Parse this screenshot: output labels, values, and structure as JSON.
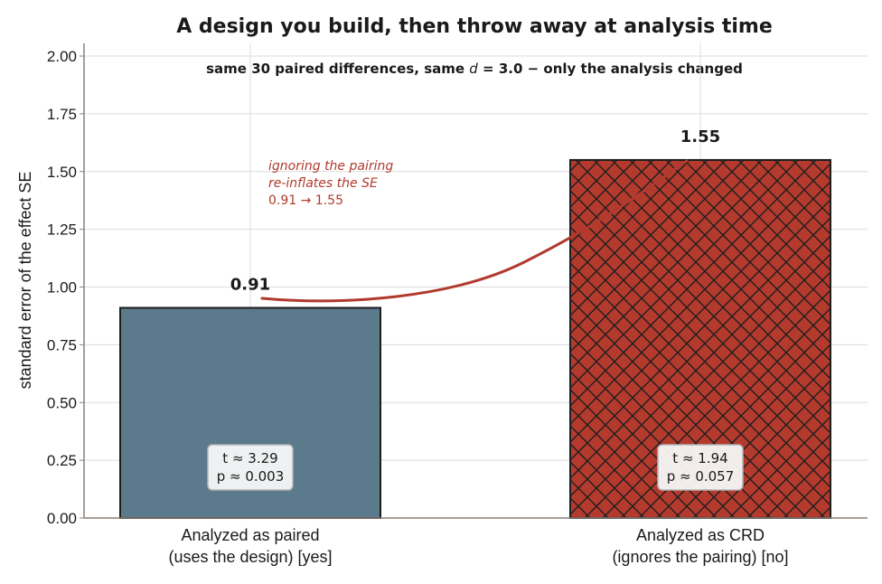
{
  "chart_data": {
    "type": "bar",
    "title": "A design you build, then throw away at analysis time",
    "subtitle_parts": [
      "same 30 paired differences, same ",
      "d",
      " = 3.0 − only the analysis changed"
    ],
    "ylabel": "standard error of the effect  SE",
    "ylim": [
      0,
      2.05
    ],
    "yticks": [
      "0.00",
      "0.25",
      "0.50",
      "0.75",
      "1.00",
      "1.25",
      "1.50",
      "1.75",
      "2.00"
    ],
    "grid": true,
    "categories": [
      {
        "line1": "Analyzed as paired",
        "line2": "(uses the design)  [yes]"
      },
      {
        "line1": "Analyzed as CRD",
        "line2": "(ignores the pairing)  [no]"
      }
    ],
    "values": [
      0.91,
      1.55
    ],
    "value_labels": [
      "0.91",
      "1.55"
    ],
    "stat_boxes": [
      {
        "t": "t ≈ 3.29",
        "p": "p ≈ 0.003"
      },
      {
        "t": "t ≈ 1.94",
        "p": "p ≈ 0.057"
      }
    ],
    "bar_colors": [
      "#5b7a8c",
      "#b53a2e"
    ],
    "bar_patterns": [
      "none",
      "crosshatch"
    ],
    "annotation": {
      "lines": [
        "ignoring the pairing",
        "re-inflates the SE",
        "0.91 → 1.55"
      ],
      "color": "#b03a2e"
    }
  }
}
